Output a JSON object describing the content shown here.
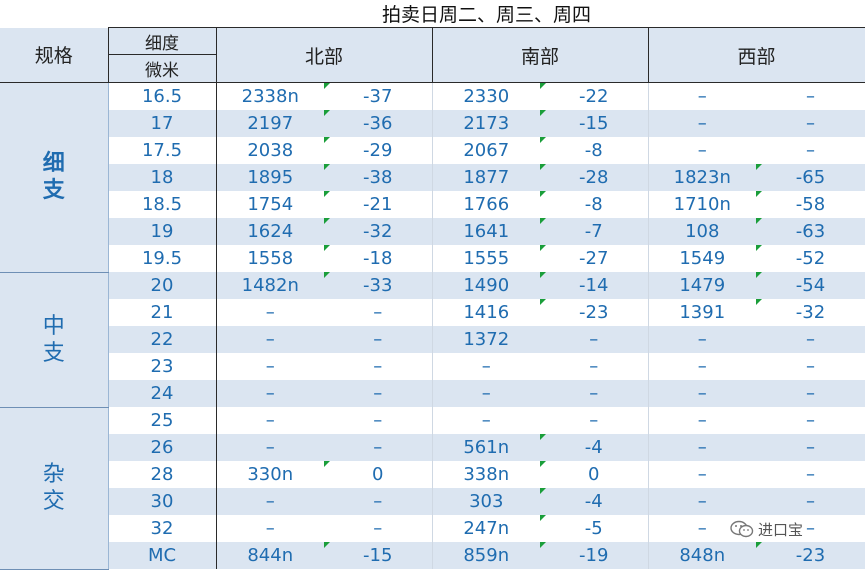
{
  "title": "拍卖日周二、周三、周四",
  "header": {
    "spec_label": "规格",
    "fineness_label": "细度",
    "unit_label": "微米",
    "regions": [
      "北部",
      "南部",
      "西部"
    ]
  },
  "groups": [
    {
      "label": "细支",
      "rows": 7,
      "bold": true
    },
    {
      "label": "中支",
      "rows": 5,
      "bold": false
    },
    {
      "label": "杂交",
      "rows": 6,
      "bold": false
    }
  ],
  "rows": [
    {
      "size": "16.5",
      "cells": [
        "2338n",
        "-37",
        "2330",
        "-22",
        "–",
        "–"
      ],
      "flags": [
        1,
        3
      ]
    },
    {
      "size": "17",
      "cells": [
        "2197",
        "-36",
        "2173",
        "-15",
        "–",
        "–"
      ],
      "flags": [
        1,
        3
      ]
    },
    {
      "size": "17.5",
      "cells": [
        "2038",
        "-29",
        "2067",
        "-8",
        "–",
        "–"
      ],
      "flags": [
        1,
        3
      ]
    },
    {
      "size": "18",
      "cells": [
        "1895",
        "-38",
        "1877",
        "-28",
        "1823n",
        "-65"
      ],
      "flags": [
        1,
        3,
        5
      ]
    },
    {
      "size": "18.5",
      "cells": [
        "1754",
        "-21",
        "1766",
        "-8",
        "1710n",
        "-58"
      ],
      "flags": [
        1,
        3,
        5
      ]
    },
    {
      "size": "19",
      "cells": [
        "1624",
        "-32",
        "1641",
        "-7",
        "108",
        "-63"
      ],
      "flags": [
        1,
        3,
        5
      ]
    },
    {
      "size": "19.5",
      "cells": [
        "1558",
        "-18",
        "1555",
        "-27",
        "1549",
        "-52"
      ],
      "flags": [
        1,
        3,
        5
      ]
    },
    {
      "size": "20",
      "cells": [
        "1482n",
        "-33",
        "1490",
        "-14",
        "1479",
        "-54"
      ],
      "flags": [
        1,
        3,
        5
      ]
    },
    {
      "size": "21",
      "cells": [
        "–",
        "–",
        "1416",
        "-23",
        "1391",
        "-32"
      ],
      "flags": [
        3,
        5
      ]
    },
    {
      "size": "22",
      "cells": [
        "–",
        "–",
        "1372",
        "–",
        "–",
        "–"
      ],
      "flags": []
    },
    {
      "size": "23",
      "cells": [
        "–",
        "–",
        "–",
        "–",
        "–",
        "–"
      ],
      "flags": []
    },
    {
      "size": "24",
      "cells": [
        "–",
        "–",
        "–",
        "–",
        "–",
        "–"
      ],
      "flags": []
    },
    {
      "size": "25",
      "cells": [
        "–",
        "–",
        "–",
        "–",
        "–",
        "–"
      ],
      "flags": []
    },
    {
      "size": "26",
      "cells": [
        "–",
        "–",
        "561n",
        "-4",
        "–",
        "–"
      ],
      "flags": [
        3
      ]
    },
    {
      "size": "28",
      "cells": [
        "330n",
        "0",
        "338n",
        "0",
        "–",
        "–"
      ],
      "flags": [
        1,
        3
      ]
    },
    {
      "size": "30",
      "cells": [
        "–",
        "–",
        "303",
        "-4",
        "–",
        "–"
      ],
      "flags": [
        3
      ]
    },
    {
      "size": "32",
      "cells": [
        "–",
        "–",
        "247n",
        "-5",
        "–",
        "–"
      ],
      "flags": [
        3
      ]
    },
    {
      "size": "MC",
      "cells": [
        "844n",
        "-15",
        "859n",
        "-19",
        "848n",
        "-23"
      ],
      "flags": [
        1,
        3,
        5
      ]
    }
  ],
  "watermark": {
    "text": "进口宝",
    "icon": "wechat-icon"
  }
}
